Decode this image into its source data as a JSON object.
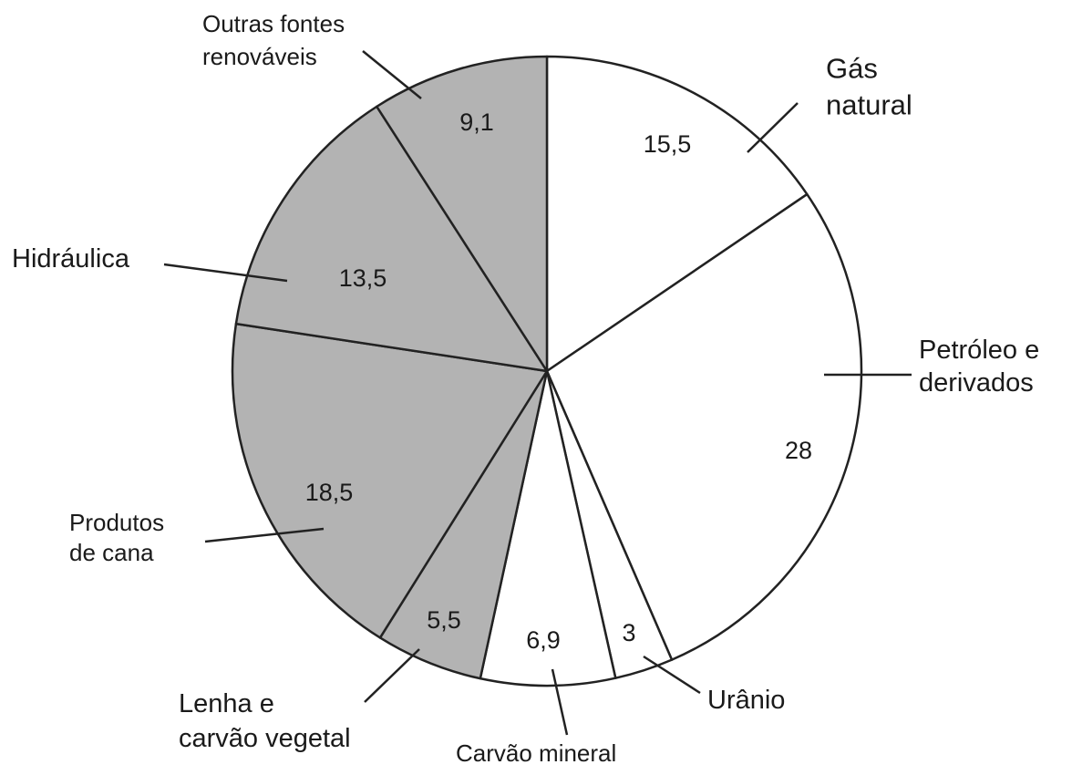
{
  "chart_data": {
    "type": "pie",
    "title": "",
    "colors": {
      "renewable": "#b3b3b3",
      "non_renewable": "#ffffff",
      "stroke": "#222222"
    },
    "slices": [
      {
        "label": "Gás natural",
        "value": 15.5,
        "value_label": "15,5",
        "group": "non_renewable"
      },
      {
        "label": "Petróleo e derivados",
        "value": 28,
        "value_label": "28",
        "group": "non_renewable"
      },
      {
        "label": "Urânio",
        "value": 3,
        "value_label": "3",
        "group": "non_renewable"
      },
      {
        "label": "Carvão mineral",
        "value": 6.9,
        "value_label": "6,9",
        "group": "non_renewable"
      },
      {
        "label": "Lenha e carvão vegetal",
        "value": 5.5,
        "value_label": "5,5",
        "group": "renewable"
      },
      {
        "label": "Produtos de cana",
        "value": 18.5,
        "value_label": "18,5",
        "group": "renewable"
      },
      {
        "label": "Hidráulica",
        "value": 13.5,
        "value_label": "13,5",
        "group": "renewable"
      },
      {
        "label": "Outras fontes renováveis",
        "value": 9.1,
        "value_label": "9,1",
        "group": "renewable"
      }
    ]
  }
}
